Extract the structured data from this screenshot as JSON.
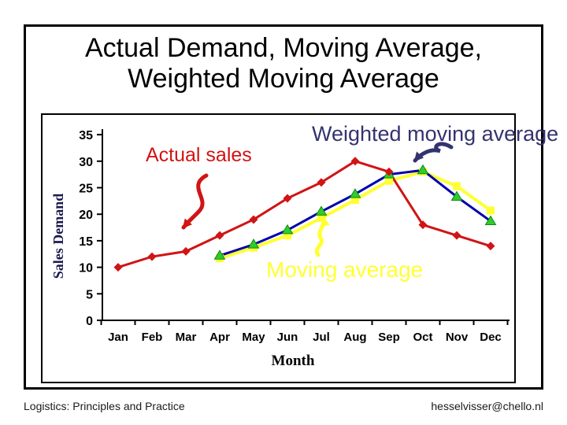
{
  "slide": {
    "title_line1": "Actual Demand, Moving Average,",
    "title_line2": "Weighted Moving Average",
    "footer_left": "Logistics: Principles and Practice",
    "footer_right": "hesselvisser@chello.nl"
  },
  "chart_data": {
    "type": "line",
    "title": "",
    "xlabel": "Month",
    "ylabel": "Sales Demand",
    "ylim": [
      0,
      35
    ],
    "ytick_interval": 5,
    "grid": false,
    "legend_position": "none (series labeled by on-chart text with arrows)",
    "categories": [
      "Jan",
      "Feb",
      "Mar",
      "Apr",
      "May",
      "Jun",
      "Jul",
      "Aug",
      "Sep",
      "Oct",
      "Nov",
      "Dec"
    ],
    "series": [
      {
        "name": "Actual sales",
        "color": "#d11414",
        "marker": "diamond",
        "values": [
          10,
          12,
          13,
          16,
          19,
          23,
          26,
          30,
          28,
          18,
          16,
          14
        ]
      },
      {
        "name": "Moving average",
        "color": "#ffff33",
        "marker": "square",
        "values": [
          null,
          null,
          null,
          11.7,
          13.7,
          16,
          19.3,
          22.7,
          26.3,
          28,
          25.3,
          20.7
        ]
      },
      {
        "name": "Weighted moving average",
        "color": "#0000aa",
        "marker": "triangle",
        "marker_color": "#2fcc2f",
        "values": [
          null,
          null,
          null,
          12.2,
          14.3,
          17,
          20.5,
          23.8,
          27.5,
          28.3,
          23.3,
          18.7
        ]
      }
    ],
    "annotations": [
      {
        "text": "Actual sales",
        "color": "#d11414"
      },
      {
        "text": "Weighted moving average",
        "color": "#333370"
      },
      {
        "text": "Moving average",
        "color": "#ffff33"
      }
    ]
  }
}
